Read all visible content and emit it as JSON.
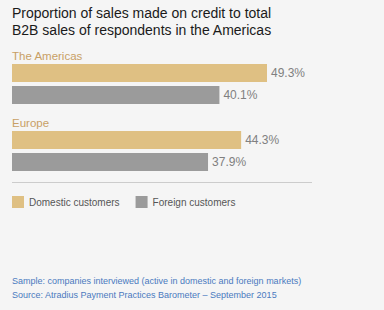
{
  "chart_data": {
    "type": "bar",
    "orientation": "horizontal",
    "title": "Proportion of sales made on credit to total",
    "subtitle": "B2B sales of respondents in the Americas",
    "categories": [
      "The Americas",
      "Europe"
    ],
    "series": [
      {
        "name": "Domestic customers",
        "color": "#dfc083",
        "values": [
          49.3,
          44.3
        ],
        "value_labels": [
          "49.3%",
          "44.3%"
        ]
      },
      {
        "name": "Foreign customers",
        "color": "#9b9b9b",
        "values": [
          40.1,
          37.9
        ],
        "value_labels": [
          "40.1%",
          "37.9%"
        ]
      }
    ],
    "xlim": [
      0,
      58
    ],
    "data_labels": true,
    "tick_labels": false,
    "grid": false,
    "legend": "lower left",
    "annotations": [
      "Sample: companies interviewed (active in domestic and foreign markets)",
      "Source: Atradius Payment Practices Barometer – September 2015"
    ]
  }
}
